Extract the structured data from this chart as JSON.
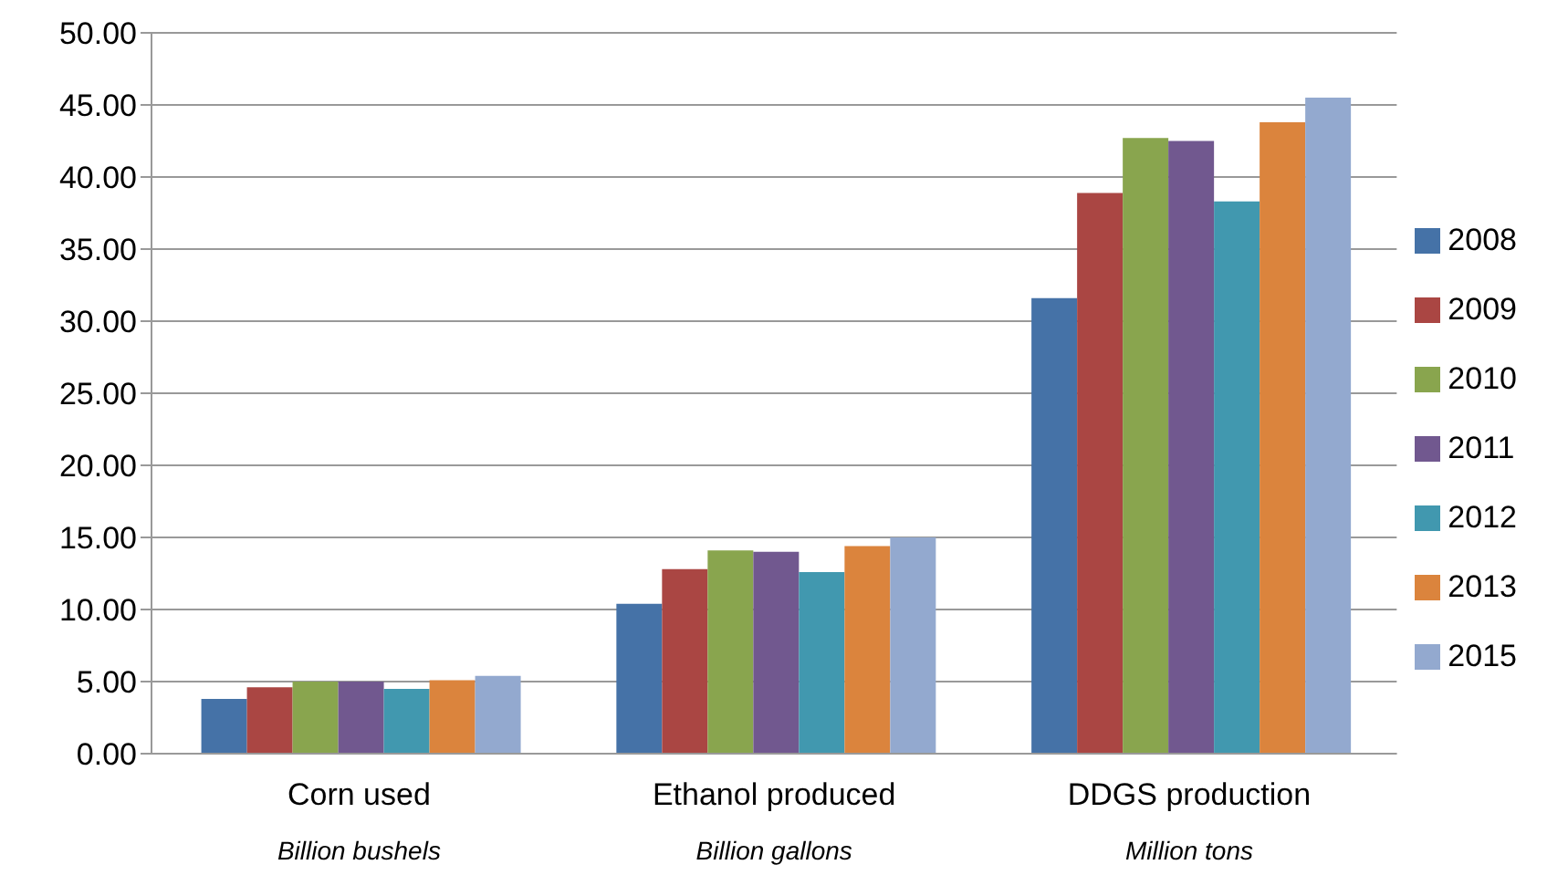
{
  "chart_data": {
    "type": "bar",
    "categories": [
      "Corn used",
      "Ethanol produced",
      "DDGS production"
    ],
    "series": [
      {
        "name": "2008",
        "color": "#4572a7",
        "values": [
          3.8,
          10.4,
          31.6
        ]
      },
      {
        "name": "2009",
        "color": "#aa4643",
        "values": [
          4.6,
          12.8,
          38.9
        ]
      },
      {
        "name": "2010",
        "color": "#89a54e",
        "values": [
          5.0,
          14.1,
          42.7
        ]
      },
      {
        "name": "2011",
        "color": "#71588f",
        "values": [
          5.0,
          14.0,
          42.5
        ]
      },
      {
        "name": "2012",
        "color": "#4198af",
        "values": [
          4.5,
          12.6,
          38.3
        ]
      },
      {
        "name": "2013",
        "color": "#db843d",
        "values": [
          5.1,
          14.4,
          43.8
        ]
      },
      {
        "name": "2015",
        "color": "#93a9cf",
        "values": [
          5.4,
          15.0,
          45.5
        ]
      }
    ],
    "annotations": [
      "Billion bushels",
      "Billion gallons",
      "Million tons"
    ],
    "ylim": [
      0,
      50
    ],
    "yticks": [
      {
        "value": 0,
        "label": "0.00"
      },
      {
        "value": 5,
        "label": "5.00"
      },
      {
        "value": 10,
        "label": "10.00"
      },
      {
        "value": 15,
        "label": "15.00"
      },
      {
        "value": 20,
        "label": "20.00"
      },
      {
        "value": 25,
        "label": "25.00"
      },
      {
        "value": 30,
        "label": "30.00"
      },
      {
        "value": 35,
        "label": "35.00"
      },
      {
        "value": 40,
        "label": "40.00"
      },
      {
        "value": 45,
        "label": "45.00"
      },
      {
        "value": 50,
        "label": "50.00"
      }
    ],
    "grid": "y",
    "legend": "right"
  }
}
